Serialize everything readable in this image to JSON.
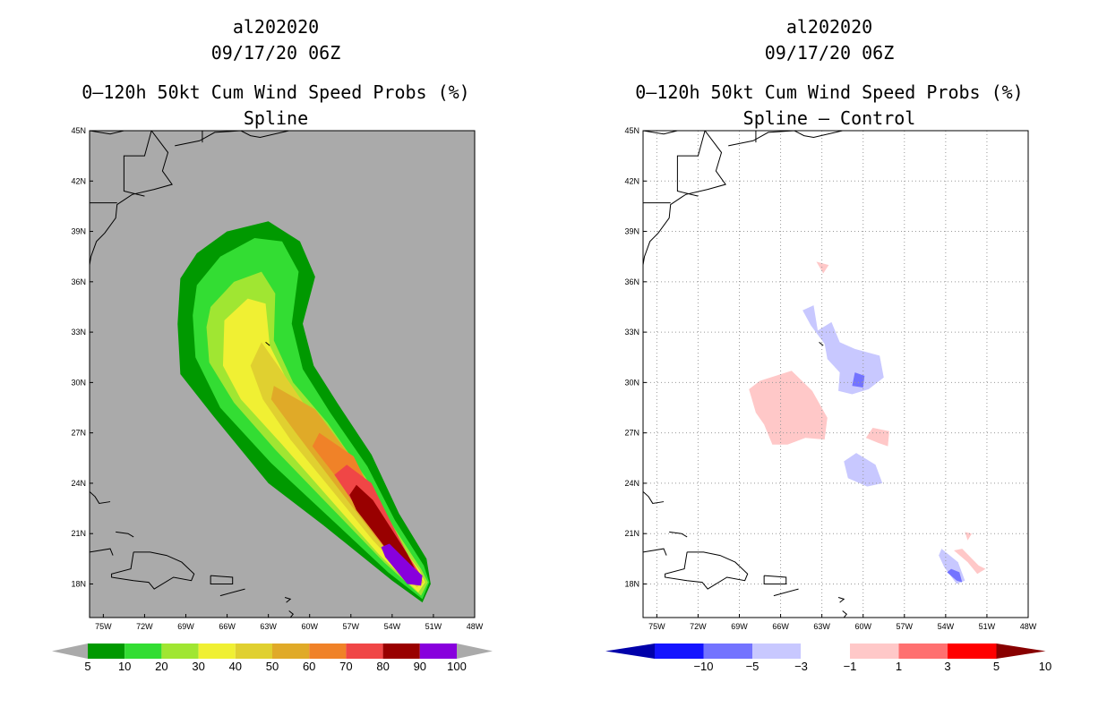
{
  "chart_data": [
    {
      "type": "heatmap",
      "storm_id": "al202020",
      "datetime": "09/17/20 06Z",
      "title": "0–120h 50kt Cum Wind Speed Probs (%)",
      "subtitle": "Spline",
      "lat_ticks": [
        "45N",
        "42N",
        "39N",
        "36N",
        "33N",
        "30N",
        "27N",
        "24N",
        "21N",
        "18N"
      ],
      "lon_ticks": [
        "75W",
        "72W",
        "69W",
        "66W",
        "63W",
        "60W",
        "57W",
        "54W",
        "51W",
        "48W"
      ],
      "lon_range": [
        -76,
        -48
      ],
      "lat_range": [
        16,
        45
      ],
      "colorbar": {
        "levels": [
          "5",
          "10",
          "20",
          "30",
          "40",
          "50",
          "60",
          "70",
          "80",
          "90",
          "100"
        ],
        "colors": [
          "#009900",
          "#33dd33",
          "#a0e632",
          "#f0f033",
          "#e0d030",
          "#e0aa28",
          "#f08228",
          "#f04646",
          "#990000",
          "#8800dd"
        ],
        "extend_color": "#aaaaaa"
      },
      "contours": [
        {
          "level": 5,
          "color": "#009900",
          "points": [
            [
              -69.4,
              36.2
            ],
            [
              -68.2,
              37.7
            ],
            [
              -66,
              39
            ],
            [
              -63,
              39.6
            ],
            [
              -60.7,
              38.4
            ],
            [
              -59.6,
              36.3
            ],
            [
              -60.5,
              33.5
            ],
            [
              -59.7,
              31
            ],
            [
              -58,
              28.8
            ],
            [
              -55.5,
              25.7
            ],
            [
              -53.5,
              22.2
            ],
            [
              -51.5,
              19.5
            ],
            [
              -51.2,
              18
            ],
            [
              -51.8,
              16.9
            ],
            [
              -54,
              18.2
            ],
            [
              -59,
              21.5
            ],
            [
              -63,
              24
            ],
            [
              -67,
              28
            ],
            [
              -69.4,
              30.5
            ],
            [
              -69.6,
              33.5
            ]
          ]
        },
        {
          "level": 10,
          "color": "#33dd33",
          "points": [
            [
              -68.2,
              35.8
            ],
            [
              -66.5,
              37.5
            ],
            [
              -64,
              38.6
            ],
            [
              -62,
              38.4
            ],
            [
              -60.8,
              36.6
            ],
            [
              -61.3,
              33.5
            ],
            [
              -60.5,
              30.8
            ],
            [
              -58.5,
              28.2
            ],
            [
              -55.8,
              25
            ],
            [
              -53.8,
              21.8
            ],
            [
              -51.7,
              19.1
            ],
            [
              -51.3,
              18.1
            ],
            [
              -51.8,
              17.1
            ],
            [
              -54.3,
              18.7
            ],
            [
              -59,
              22.3
            ],
            [
              -62.8,
              25.2
            ],
            [
              -66.5,
              28.5
            ],
            [
              -68.3,
              31.5
            ],
            [
              -68.5,
              34
            ]
          ]
        },
        {
          "level": 20,
          "color": "#a0e632",
          "points": [
            [
              -67.2,
              34.5
            ],
            [
              -65.5,
              36
            ],
            [
              -63.5,
              36.6
            ],
            [
              -62.5,
              35.3
            ],
            [
              -62.6,
              32.5
            ],
            [
              -61.2,
              30
            ],
            [
              -58.7,
              27.6
            ],
            [
              -55.9,
              24.3
            ],
            [
              -53.9,
              21.4
            ],
            [
              -51.9,
              18.9
            ],
            [
              -51.4,
              18.1
            ],
            [
              -51.9,
              17.3
            ],
            [
              -54.6,
              19.3
            ],
            [
              -59.2,
              23.2
            ],
            [
              -62.5,
              26
            ],
            [
              -65.5,
              28.8
            ],
            [
              -67.3,
              31.2
            ],
            [
              -67.5,
              33.3
            ]
          ]
        },
        {
          "level": 30,
          "color": "#f0f033",
          "points": [
            [
              -66.2,
              33.7
            ],
            [
              -64.5,
              35
            ],
            [
              -63.2,
              34.7
            ],
            [
              -62.9,
              32.2
            ],
            [
              -61.2,
              29.4
            ],
            [
              -58.6,
              26.6
            ],
            [
              -55.9,
              23.6
            ],
            [
              -54,
              21
            ],
            [
              -52,
              18.8
            ],
            [
              -51.6,
              18.1
            ],
            [
              -52.1,
              17.5
            ],
            [
              -55,
              19.8
            ],
            [
              -59,
              23.5
            ],
            [
              -62,
              26.3
            ],
            [
              -65,
              29
            ],
            [
              -66.3,
              31
            ]
          ]
        },
        {
          "level": 40,
          "color": "#e0d030",
          "points": [
            [
              -63.5,
              32.4
            ],
            [
              -62.3,
              31
            ],
            [
              -60.3,
              28.6
            ],
            [
              -57.9,
              26
            ],
            [
              -55.7,
              23.4
            ],
            [
              -54,
              21
            ],
            [
              -52.2,
              18.8
            ],
            [
              -51.7,
              18.1
            ],
            [
              -52.2,
              17.8
            ],
            [
              -55.4,
              20.6
            ],
            [
              -58.8,
              24
            ],
            [
              -61.4,
              26.6
            ],
            [
              -63.4,
              29
            ],
            [
              -64.3,
              31
            ]
          ]
        },
        {
          "level": 50,
          "color": "#e0aa28",
          "points": [
            [
              -62.6,
              29.8
            ],
            [
              -59.6,
              28.4
            ],
            [
              -57.2,
              25.8
            ],
            [
              -55.4,
              23
            ],
            [
              -53.9,
              20.8
            ],
            [
              -52.3,
              18.8
            ],
            [
              -51.8,
              18.2
            ],
            [
              -52.4,
              18
            ],
            [
              -55.4,
              21
            ],
            [
              -58.5,
              24.3
            ],
            [
              -61,
              27
            ],
            [
              -62.8,
              29
            ]
          ]
        },
        {
          "level": 60,
          "color": "#f08228",
          "points": [
            [
              -59.3,
              27
            ],
            [
              -56.8,
              25.6
            ],
            [
              -55.2,
              23
            ],
            [
              -53.7,
              20.6
            ],
            [
              -52.4,
              18.9
            ],
            [
              -51.9,
              18.2
            ],
            [
              -52.6,
              18.1
            ],
            [
              -55.4,
              21.2
            ],
            [
              -58,
              24.3
            ],
            [
              -59.8,
              26.2
            ]
          ]
        },
        {
          "level": 70,
          "color": "#f04646",
          "points": [
            [
              -57.3,
              25.1
            ],
            [
              -55.5,
              24
            ],
            [
              -54.1,
              21.7
            ],
            [
              -52.9,
              19.8
            ],
            [
              -51.9,
              18.5
            ],
            [
              -52.7,
              18.2
            ],
            [
              -55.2,
              20.9
            ],
            [
              -57.2,
              23.3
            ],
            [
              -58.2,
              24.5
            ]
          ]
        },
        {
          "level": 80,
          "color": "#990000",
          "points": [
            [
              -56.6,
              23.9
            ],
            [
              -55.4,
              23
            ],
            [
              -54.3,
              21.6
            ],
            [
              -52.9,
              19.8
            ],
            [
              -52.1,
              18.5
            ],
            [
              -52.8,
              18.2
            ],
            [
              -54.8,
              20.5
            ],
            [
              -56.6,
              22.4
            ],
            [
              -57.1,
              23.3
            ]
          ]
        },
        {
          "level": 90,
          "color": "#8800dd",
          "points": [
            [
              -54.2,
              20.4
            ],
            [
              -52.6,
              19.1
            ],
            [
              -51.8,
              18.5
            ],
            [
              -51.9,
              17.9
            ],
            [
              -52.9,
              18
            ],
            [
              -54.5,
              19.6
            ],
            [
              -54.8,
              20.2
            ]
          ]
        }
      ]
    },
    {
      "type": "heatmap",
      "storm_id": "al202020",
      "datetime": "09/17/20 06Z",
      "title": "0–120h 50kt Cum Wind Speed Probs (%)",
      "subtitle": "Spline – Control",
      "lat_ticks": [
        "45N",
        "42N",
        "39N",
        "36N",
        "33N",
        "30N",
        "27N",
        "24N",
        "21N",
        "18N"
      ],
      "lon_ticks": [
        "75W",
        "72W",
        "69W",
        "66W",
        "63W",
        "60W",
        "57W",
        "54W",
        "51W",
        "48W"
      ],
      "lon_range": [
        -76,
        -48
      ],
      "lat_range": [
        16,
        45
      ],
      "colorbar": {
        "levels": [
          "−10",
          "−5",
          "−3",
          "−1",
          "1",
          "3",
          "5",
          "10"
        ],
        "colors": [
          "#0000aa",
          "#1414ff",
          "#7373ff",
          "#c8c8ff",
          "#ffffff",
          "#ffc8c8",
          "#ff7070",
          "#ff0000",
          "#880000"
        ]
      },
      "contours": [
        {
          "level": 1,
          "color": "#ffc8c8",
          "points": [
            [
              -67.5,
              30.1
            ],
            [
              -65.2,
              30.7
            ],
            [
              -63.7,
              29.5
            ],
            [
              -62.6,
              27.9
            ],
            [
              -62.8,
              26.6
            ],
            [
              -64.2,
              26.7
            ],
            [
              -65.5,
              26.3
            ],
            [
              -66.6,
              26.3
            ],
            [
              -67.2,
              27.5
            ],
            [
              -67.8,
              28.2
            ],
            [
              -68.3,
              29.6
            ]
          ]
        },
        {
          "level": 1,
          "color": "#ffc8c8",
          "points": [
            [
              -59.3,
              27.3
            ],
            [
              -58.1,
              27.1
            ],
            [
              -58.2,
              26.2
            ],
            [
              -58.9,
              26.4
            ],
            [
              -59.8,
              26.7
            ]
          ]
        },
        {
          "level": 1,
          "color": "#ffc8c8",
          "points": [
            [
              -63.4,
              37.2
            ],
            [
              -62.5,
              37
            ],
            [
              -62.9,
              36.5
            ]
          ]
        },
        {
          "level": 1,
          "color": "#ffc8c8",
          "points": [
            [
              -52.6,
              21.1
            ],
            [
              -52.1,
              21
            ],
            [
              -52.4,
              20.6
            ]
          ]
        },
        {
          "level": 1,
          "color": "#ffc8c8",
          "points": [
            [
              -52.8,
              20.1
            ],
            [
              -51.6,
              19.1
            ],
            [
              -51.1,
              18.9
            ],
            [
              -51.7,
              18.6
            ],
            [
              -52.4,
              19.3
            ],
            [
              -53.4,
              20
            ]
          ]
        },
        {
          "level": -1,
          "color": "#c8c8ff",
          "points": [
            [
              -63.3,
              33.1
            ],
            [
              -62.3,
              33.6
            ],
            [
              -61.7,
              32.4
            ],
            [
              -60.6,
              32
            ],
            [
              -58.8,
              31.6
            ],
            [
              -58.5,
              30.3
            ],
            [
              -59.6,
              29.6
            ],
            [
              -60.8,
              29.3
            ],
            [
              -61.8,
              29.5
            ],
            [
              -61.7,
              30.6
            ],
            [
              -62.6,
              31.4
            ],
            [
              -62.8,
              32.3
            ],
            [
              -63.8,
              33.4
            ],
            [
              -64.4,
              34.3
            ],
            [
              -63.6,
              34.6
            ]
          ]
        },
        {
          "level": -1,
          "color": "#c8c8ff",
          "points": [
            [
              -60.5,
              25.8
            ],
            [
              -59.1,
              25.1
            ],
            [
              -58.6,
              24
            ],
            [
              -59.7,
              23.8
            ],
            [
              -61.1,
              24.3
            ],
            [
              -61.4,
              25.3
            ]
          ]
        },
        {
          "level": -1,
          "color": "#c8c8ff",
          "points": [
            [
              -54.3,
              20.1
            ],
            [
              -53.1,
              19.3
            ],
            [
              -52.6,
              18.2
            ],
            [
              -53.2,
              18
            ],
            [
              -54.1,
              19
            ],
            [
              -54.5,
              19.7
            ]
          ]
        },
        {
          "level": -3,
          "color": "#7373ff",
          "points": [
            [
              -60.6,
              30.6
            ],
            [
              -59.9,
              30.4
            ],
            [
              -60,
              29.7
            ],
            [
              -60.8,
              29.8
            ]
          ]
        },
        {
          "level": -3,
          "color": "#7373ff",
          "points": [
            [
              -53.6,
              18.9
            ],
            [
              -53,
              18.7
            ],
            [
              -52.8,
              18.1
            ],
            [
              -53.2,
              18.2
            ],
            [
              -53.9,
              18.7
            ]
          ]
        }
      ]
    }
  ]
}
